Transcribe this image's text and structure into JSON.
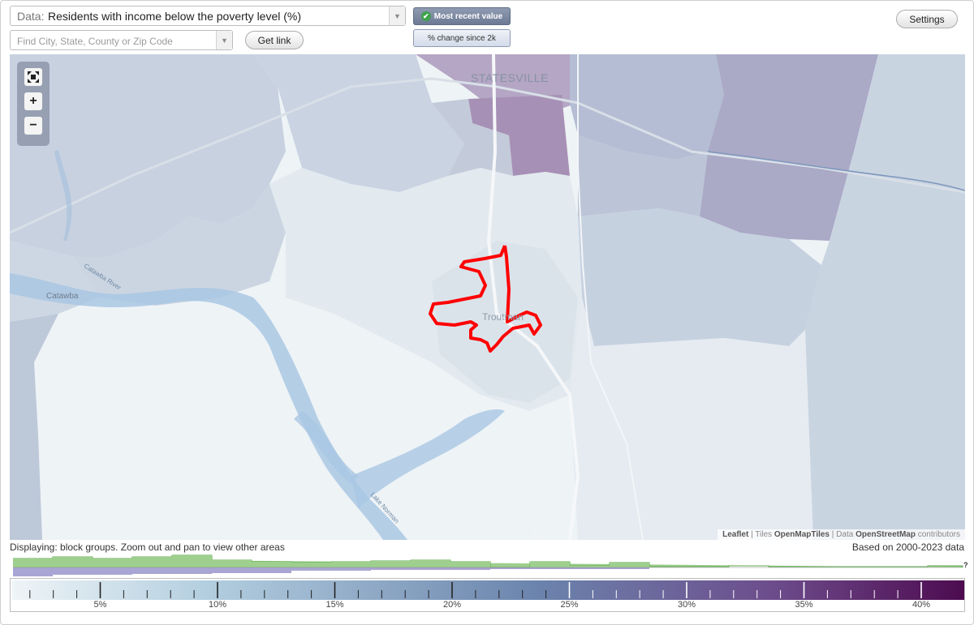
{
  "data_selector": {
    "prefix": "Data:",
    "value": "Residents with income below the poverty level (%)",
    "arrow_icon": "chevron-down-icon"
  },
  "search": {
    "placeholder": "Find City, State, County or Zip Code",
    "value": ""
  },
  "buttons": {
    "get_link": "Get link",
    "most_recent": "Most recent value",
    "change_since": "% change since 2k",
    "settings": "Settings"
  },
  "map": {
    "labels": {
      "statesville": "STATESVILLE",
      "catawba": "Catawba",
      "troutman": "Troutman",
      "catawba_river": "Catawba River",
      "lake_norman": "Lake Norman"
    },
    "zoom_controls": {
      "fullscreen_icon": "fullscreen-icon",
      "zoom_in": "+",
      "zoom_out": "−"
    },
    "attribution": {
      "leaflet": "Leaflet",
      "sep1": " | Tiles ",
      "tiles": "OpenMapTiles",
      "sep2": " | Data ",
      "data": "OpenStreetMap",
      "suffix": " contributors"
    },
    "highlight_color": "#ff0000"
  },
  "status": {
    "displaying": "Displaying: block groups. Zoom out and pan to view other areas",
    "based_on": "Based on 2000-2023 data"
  },
  "histogram": {
    "question_mark": "?"
  },
  "legend": {
    "tick_labels": [
      "5%",
      "10%",
      "15%",
      "20%",
      "25%",
      "30%",
      "35%",
      "40%"
    ],
    "gradient_start": "#eef4f7",
    "gradient_mid": "#6b84ad",
    "gradient_end": "#4d0b4f"
  }
}
